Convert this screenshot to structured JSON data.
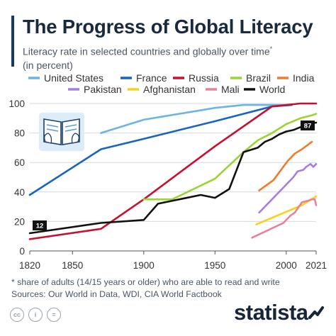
{
  "header": {
    "title": "The Progress of Global Literacy",
    "subtitle": "Literacy rate in selected countries and globally over time",
    "subtitle_mark": "*",
    "subtitle_line2": "(in percent)"
  },
  "footer": {
    "footnote": "* share of adults (14/15 years or older) who are able to read and write",
    "sources": "Sources: Our World in Data, WDI, CIA World Factbook",
    "brand": "statista",
    "license_icons": [
      "cc",
      "i",
      "="
    ]
  },
  "colors": {
    "United States": "#6cb4e6",
    "France": "#1765c1",
    "Russia": "#c8102e",
    "Brazil": "#9ad430",
    "India": "#f07b2c",
    "Pakistan": "#a67de0",
    "Afghanistan": "#f7d21c",
    "Mali": "#e9809a",
    "World": "#111111"
  },
  "chart_data": {
    "type": "line",
    "title": "The Progress of Global Literacy",
    "xlabel": "",
    "ylabel": "",
    "xlim": [
      1820,
      2021
    ],
    "ylim": [
      0,
      100
    ],
    "x_ticks": [
      "1820",
      "1850",
      "1900",
      "1950",
      "2000",
      "2021"
    ],
    "y_ticks": [
      "0",
      "20",
      "40",
      "60",
      "80",
      "100"
    ],
    "grid": true,
    "legend_placement": "top",
    "annotations": [
      {
        "series": "World",
        "x": 1820,
        "value": 12,
        "label": "12"
      },
      {
        "series": "World",
        "x": 2021,
        "value": 87,
        "label": "87"
      }
    ],
    "series": [
      {
        "name": "United States",
        "x": [
          1870,
          1900,
          1950,
          1970,
          2002
        ],
        "values": [
          80,
          89,
          97,
          99,
          99
        ]
      },
      {
        "name": "France",
        "x": [
          1820,
          1870,
          1900,
          1950,
          1990,
          2004
        ],
        "values": [
          38,
          69,
          76,
          88,
          98,
          99
        ]
      },
      {
        "name": "Russia",
        "x": [
          1820,
          1870,
          1900,
          1950,
          1990,
          2010,
          2021
        ],
        "values": [
          8,
          15,
          35,
          71,
          98,
          100,
          100
        ]
      },
      {
        "name": "Brazil",
        "x": [
          1900,
          1920,
          1950,
          1970,
          1980,
          1990,
          2000,
          2010,
          2018,
          2021
        ],
        "values": [
          35,
          35,
          49,
          67,
          75,
          80,
          86,
          90,
          92,
          93
        ]
      },
      {
        "name": "India",
        "x": [
          1981,
          1991,
          2001,
          2006,
          2011,
          2018
        ],
        "values": [
          41,
          48,
          61,
          66,
          69,
          74
        ]
      },
      {
        "name": "Pakistan",
        "x": [
          1981,
          1998,
          2005,
          2008,
          2012,
          2014,
          2017,
          2019,
          2021
        ],
        "values": [
          26,
          43,
          50,
          54,
          55,
          57,
          59,
          57,
          59
        ]
      },
      {
        "name": "Afghanistan",
        "x": [
          1979,
          2011,
          2021
        ],
        "values": [
          18,
          31,
          37
        ]
      },
      {
        "name": "Mali",
        "x": [
          1976,
          1998,
          2003,
          2006,
          2011,
          2015,
          2018,
          2020,
          2021
        ],
        "values": [
          9,
          19,
          24,
          26,
          33,
          34,
          35,
          35,
          31
        ]
      },
      {
        "name": "World",
        "x": [
          1820,
          1870,
          1900,
          1910,
          1940,
          1950,
          1960,
          1970,
          1980,
          1985,
          1990,
          1995,
          2000,
          2005,
          2010,
          2015,
          2021
        ],
        "values": [
          12,
          19,
          21,
          32,
          38,
          36,
          42,
          67,
          70,
          74,
          76,
          79,
          81,
          82,
          84,
          86,
          87
        ]
      }
    ]
  }
}
